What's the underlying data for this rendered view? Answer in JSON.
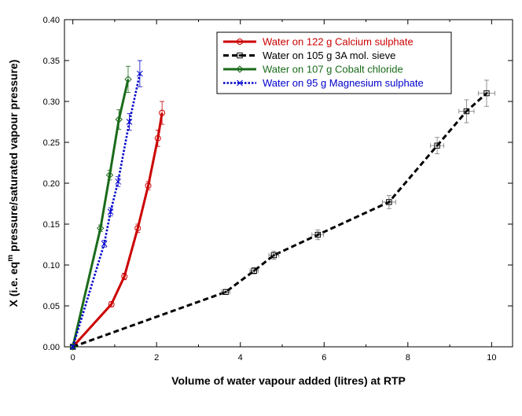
{
  "chart_data": {
    "type": "line",
    "xlabel": "Volume of water vapour added (litres) at RTP",
    "ylabel_parts": {
      "pre": "X (i.e. eq",
      "sup": "m",
      "post": " pressure/saturated vapour pressure)"
    },
    "xlim": [
      -0.2,
      10.5
    ],
    "ylim": [
      0,
      0.4
    ],
    "xticks": [
      0,
      2,
      4,
      6,
      8,
      10
    ],
    "yticks": [
      0.0,
      0.05,
      0.1,
      0.15,
      0.2,
      0.25,
      0.3,
      0.35,
      0.4
    ],
    "xtick_labels": [
      "0",
      "2",
      "4",
      "6",
      "8",
      "10"
    ],
    "ytick_labels": [
      "0.00",
      "0.05",
      "0.10",
      "0.15",
      "0.20",
      "0.25",
      "0.30",
      "0.35",
      "0.40"
    ],
    "grid": false,
    "legend_position": "top-right",
    "series": [
      {
        "name": "Water on 122 g Calcium sulphate",
        "color": "#cc0000",
        "line_style": "solid",
        "marker": "circle",
        "x": [
          0.0,
          0.92,
          1.23,
          1.55,
          1.8,
          2.03,
          2.13
        ],
        "y": [
          0.0,
          0.052,
          0.086,
          0.145,
          0.197,
          0.255,
          0.286
        ],
        "yerr": [
          0.002,
          0.003,
          0.004,
          0.005,
          0.005,
          0.01,
          0.014
        ],
        "xerr": [
          0,
          0,
          0,
          0,
          0,
          0,
          0
        ]
      },
      {
        "name": "Water on 105 g 3A mol. sieve",
        "color": "#000000",
        "line_style": "dashed",
        "marker": "square",
        "x": [
          0.0,
          3.65,
          4.33,
          4.8,
          5.85,
          7.55,
          8.7,
          9.4,
          9.88
        ],
        "y": [
          0.0,
          0.067,
          0.093,
          0.112,
          0.137,
          0.177,
          0.246,
          0.288,
          0.31
        ],
        "yerr": [
          0.002,
          0.003,
          0.004,
          0.005,
          0.006,
          0.008,
          0.01,
          0.014,
          0.016
        ],
        "xerr": [
          0,
          0.1,
          0.1,
          0.12,
          0.14,
          0.16,
          0.16,
          0.18,
          0.2
        ]
      },
      {
        "name": "Water on 107 g Cobalt chloride",
        "color": "#1a6b1a",
        "line_style": "solid",
        "marker": "diamond",
        "x": [
          0.0,
          0.66,
          0.88,
          1.1,
          1.32
        ],
        "y": [
          0.0,
          0.145,
          0.21,
          0.278,
          0.327
        ],
        "yerr": [
          0.002,
          0.004,
          0.006,
          0.012,
          0.016
        ],
        "xerr": [
          0,
          0,
          0,
          0,
          0
        ]
      },
      {
        "name": "Water on 95 g Magnesium sulphate",
        "color": "#0000cc",
        "line_style": "dotted",
        "marker": "x",
        "x": [
          0.0,
          0.75,
          0.9,
          1.08,
          1.35,
          1.6
        ],
        "y": [
          0.0,
          0.126,
          0.165,
          0.202,
          0.275,
          0.334
        ],
        "yerr": [
          0.002,
          0.004,
          0.005,
          0.006,
          0.01,
          0.016
        ],
        "xerr": [
          0,
          0,
          0,
          0,
          0,
          0
        ]
      }
    ]
  }
}
